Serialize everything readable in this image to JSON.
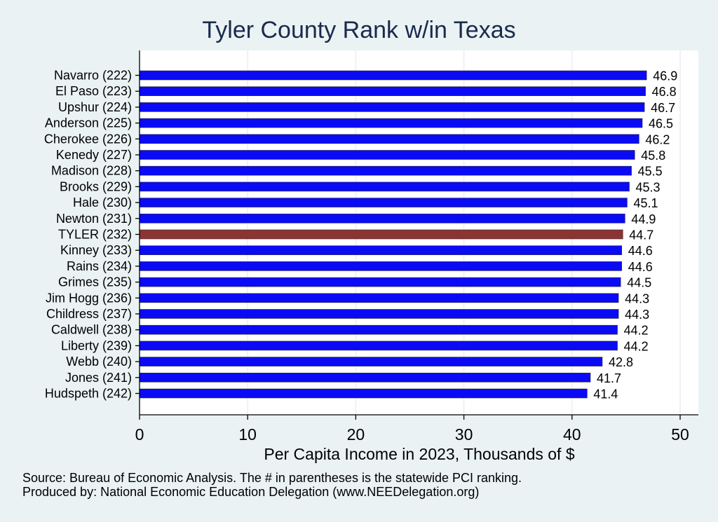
{
  "title": "Tyler County Rank w/in Texas",
  "footnotes": {
    "source": "Source: Bureau of Economic Analysis. The # in parentheses is the statewide PCI ranking.",
    "produced_by": "Produced by: National Economic Education Delegation (www.NEEDelegation.org)"
  },
  "colors": {
    "background": "#eaf2f3",
    "plot_area": "#ffffff",
    "bar": "#0a0af5",
    "highlight_bar": "#8b3434",
    "gridline": "#eef2f3"
  },
  "chart_data": {
    "type": "bar",
    "orientation": "horizontal",
    "title": "Tyler County Rank w/in Texas",
    "xlabel": "Per Capita Income in 2023, Thousands of $",
    "ylabel": "",
    "xlim": [
      0,
      50
    ],
    "xticks": [
      0,
      10,
      20,
      30,
      40,
      50
    ],
    "grid": "vertical",
    "highlight": "TYLER (232)",
    "categories": [
      "Navarro (222)",
      "El Paso (223)",
      "Upshur (224)",
      "Anderson (225)",
      "Cherokee (226)",
      "Kenedy (227)",
      "Madison (228)",
      "Brooks (229)",
      "Hale (230)",
      "Newton (231)",
      "TYLER (232)",
      "Kinney (233)",
      "Rains (234)",
      "Grimes (235)",
      "Jim Hogg (236)",
      "Childress (237)",
      "Caldwell (238)",
      "Liberty (239)",
      "Webb (240)",
      "Jones (241)",
      "Hudspeth (242)"
    ],
    "values": [
      46.9,
      46.8,
      46.7,
      46.5,
      46.2,
      45.8,
      45.5,
      45.3,
      45.1,
      44.9,
      44.7,
      44.6,
      44.6,
      44.5,
      44.3,
      44.3,
      44.2,
      44.2,
      42.8,
      41.7,
      41.4
    ],
    "value_labels": [
      "46.9",
      "46.8",
      "46.7",
      "46.5",
      "46.2",
      "45.8",
      "45.5",
      "45.3",
      "45.1",
      "44.9",
      "44.7",
      "44.6",
      "44.6",
      "44.5",
      "44.3",
      "44.3",
      "44.2",
      "44.2",
      "42.8",
      "41.7",
      "41.4"
    ]
  }
}
